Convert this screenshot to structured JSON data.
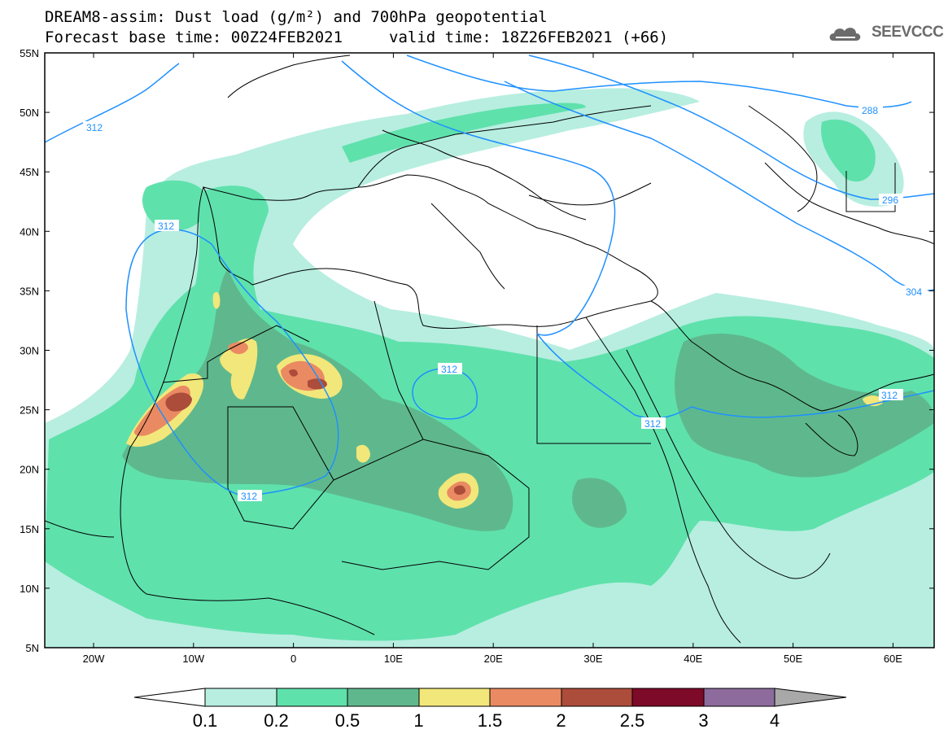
{
  "header": {
    "title_line1": "DREAM8-assim: Dust load (g/m²) and 700hPa geopotential",
    "base_time": "Forecast base time: 00Z24FEB2021",
    "valid_time": "valid time: 18Z26FEB2021 (+66)"
  },
  "logo": {
    "text": "SEEVCCC",
    "icon": "cloud-logo-icon"
  },
  "map": {
    "lat_labels": [
      "55N",
      "50N",
      "45N",
      "40N",
      "35N",
      "30N",
      "25N",
      "20N",
      "15N",
      "10N",
      "5N"
    ],
    "lon_labels": [
      "20W",
      "10W",
      "0",
      "10E",
      "20E",
      "30E",
      "40E",
      "50E",
      "60E"
    ],
    "contours": [
      {
        "label": "312"
      },
      {
        "label": "312"
      },
      {
        "label": "312"
      },
      {
        "label": "312"
      },
      {
        "label": "312"
      },
      {
        "label": "288"
      },
      {
        "label": "296"
      },
      {
        "label": "304"
      }
    ],
    "colors": {
      "c01": "#b7eee0",
      "c02": "#5fe1ac",
      "c05": "#5fb88d",
      "c1": "#f2e77a",
      "c15": "#ea8a62",
      "c2": "#ac4c3a",
      "c25": "#7d0a28",
      "c3": "#8d6b9c",
      "c4": "#a8a8a8",
      "contour": "#1e90ff"
    }
  },
  "colorbar": {
    "labels": [
      "0.1",
      "0.2",
      "0.5",
      "1",
      "1.5",
      "2",
      "2.5",
      "3",
      "4"
    ]
  }
}
